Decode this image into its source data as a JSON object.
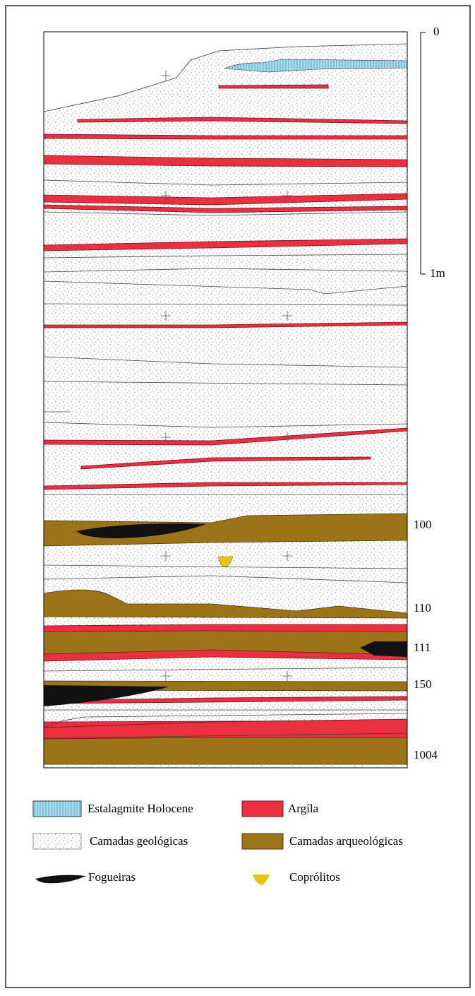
{
  "scale": {
    "top": "0",
    "bottom": "1m"
  },
  "layers": [
    "100",
    "110",
    "111",
    "150",
    "1004"
  ],
  "legend": [
    "Estalagmite Holocene",
    "Argíla",
    "Camadas geológicas",
    "Camadas arqueológicas",
    "Fogueiras",
    "Coprólitos"
  ]
}
